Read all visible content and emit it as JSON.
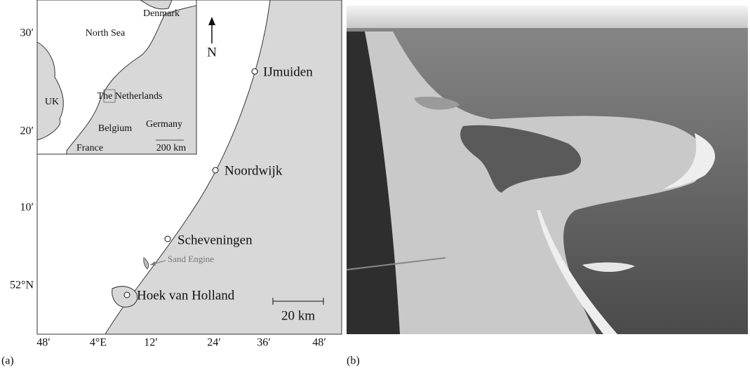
{
  "panel_a": {
    "label": "(a)",
    "lat_ticks": [
      "30′",
      "20′",
      "10′",
      "52°N"
    ],
    "lon_ticks": [
      "48′",
      "4°E",
      "12′",
      "24′",
      "36′",
      "48′"
    ],
    "north": "N",
    "places": [
      "IJmuiden",
      "Noordwijk",
      "Scheveningen",
      "Hoek van Holland"
    ],
    "annotation": "Sand Engine",
    "scale": "20 km",
    "inset": {
      "labels": [
        "Denmark",
        "North Sea",
        "UK",
        "The Netherlands",
        "Belgium",
        "Germany",
        "France"
      ],
      "scale": "200 km"
    }
  },
  "panel_b": {
    "label": "(b)"
  }
}
